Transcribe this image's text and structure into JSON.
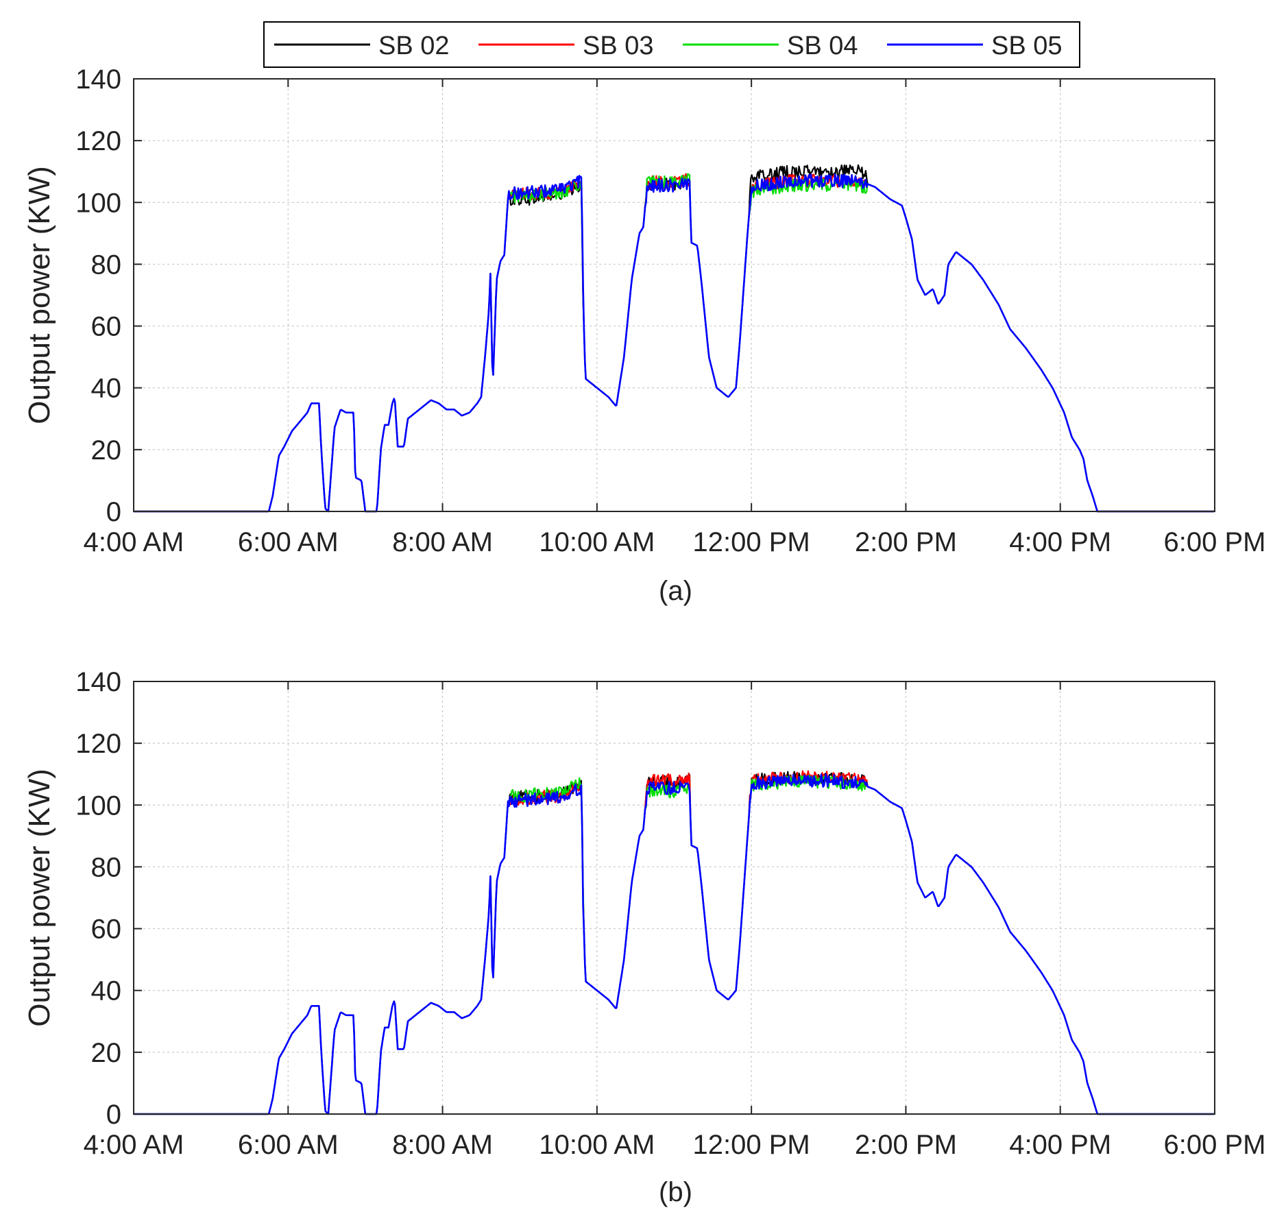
{
  "legend": {
    "entries": [
      {
        "label": "SB 02",
        "color": "#000000"
      },
      {
        "label": "SB 03",
        "color": "#ff0000"
      },
      {
        "label": "SB 04",
        "color": "#00dd00"
      },
      {
        "label": "SB 05",
        "color": "#0000ff"
      }
    ]
  },
  "chart_data": [
    {
      "type": "line",
      "subcaption": "(a)",
      "ylabel": "Output power (KW)",
      "xlabel": "",
      "x_ticks": [
        "4:00 AM",
        "6:00 AM",
        "8:00 AM",
        "10:00 AM",
        "12:00 PM",
        "2:00 PM",
        "4:00 PM",
        "6:00 PM"
      ],
      "x_tick_hours": [
        4,
        6,
        8,
        10,
        12,
        14,
        16,
        18
      ],
      "xlim": [
        "4:00 AM",
        "6:00 PM"
      ],
      "y_ticks": [
        0,
        20,
        40,
        60,
        80,
        100,
        120,
        140
      ],
      "ylim": [
        0,
        140
      ],
      "grid": true,
      "series_note": "x values are hours of day (e.g. 13.5 = 1:30 PM)",
      "base_profile": [
        [
          4.0,
          0
        ],
        [
          5.75,
          0
        ],
        [
          5.8,
          5
        ],
        [
          5.88,
          18
        ],
        [
          5.95,
          21
        ],
        [
          6.05,
          26
        ],
        [
          6.15,
          29
        ],
        [
          6.25,
          32
        ],
        [
          6.3,
          35
        ],
        [
          6.4,
          35
        ],
        [
          6.43,
          20
        ],
        [
          6.48,
          1
        ],
        [
          6.52,
          0
        ],
        [
          6.6,
          27
        ],
        [
          6.68,
          33
        ],
        [
          6.75,
          32
        ],
        [
          6.85,
          32
        ],
        [
          6.87,
          11
        ],
        [
          6.95,
          10
        ],
        [
          7.0,
          0
        ],
        [
          7.15,
          0
        ],
        [
          7.2,
          20
        ],
        [
          7.25,
          28
        ],
        [
          7.3,
          28
        ],
        [
          7.35,
          35
        ],
        [
          7.38,
          37
        ],
        [
          7.42,
          21
        ],
        [
          7.5,
          21
        ],
        [
          7.55,
          30
        ],
        [
          7.7,
          33
        ],
        [
          7.85,
          36
        ],
        [
          7.95,
          35
        ],
        [
          8.05,
          33
        ],
        [
          8.15,
          33
        ],
        [
          8.25,
          31
        ],
        [
          8.35,
          32
        ],
        [
          8.45,
          35
        ],
        [
          8.5,
          37
        ],
        [
          8.55,
          50
        ],
        [
          8.6,
          65
        ],
        [
          8.62,
          77
        ],
        [
          8.65,
          40
        ],
        [
          8.7,
          75
        ],
        [
          8.75,
          81
        ],
        [
          8.8,
          83
        ],
        [
          8.85,
          102
        ],
        [
          9.0,
          102
        ],
        [
          9.5,
          103
        ],
        [
          9.8,
          106
        ],
        [
          9.82,
          70
        ],
        [
          9.85,
          43
        ],
        [
          10.0,
          40
        ],
        [
          10.15,
          37
        ],
        [
          10.25,
          34
        ],
        [
          10.35,
          50
        ],
        [
          10.45,
          75
        ],
        [
          10.55,
          90
        ],
        [
          10.6,
          92
        ],
        [
          10.65,
          106
        ],
        [
          11.0,
          106
        ],
        [
          11.2,
          107
        ],
        [
          11.22,
          87
        ],
        [
          11.3,
          86
        ],
        [
          11.35,
          75
        ],
        [
          11.45,
          50
        ],
        [
          11.55,
          40
        ],
        [
          11.7,
          37
        ],
        [
          11.8,
          40
        ],
        [
          11.85,
          55
        ],
        [
          11.95,
          90
        ],
        [
          12.0,
          105
        ],
        [
          12.5,
          107
        ],
        [
          13.0,
          107
        ],
        [
          13.4,
          107
        ],
        [
          13.5,
          106
        ],
        [
          13.6,
          105
        ],
        [
          13.8,
          101
        ],
        [
          13.95,
          99
        ],
        [
          14.0,
          95
        ],
        [
          14.08,
          88
        ],
        [
          14.15,
          75
        ],
        [
          14.25,
          70
        ],
        [
          14.35,
          72
        ],
        [
          14.42,
          67
        ],
        [
          14.5,
          70
        ],
        [
          14.55,
          80
        ],
        [
          14.65,
          84
        ],
        [
          14.75,
          82
        ],
        [
          14.85,
          80
        ],
        [
          15.0,
          75
        ],
        [
          15.2,
          67
        ],
        [
          15.35,
          59
        ],
        [
          15.55,
          53
        ],
        [
          15.75,
          46
        ],
        [
          15.9,
          40
        ],
        [
          16.05,
          32
        ],
        [
          16.15,
          24
        ],
        [
          16.25,
          20
        ],
        [
          16.3,
          17
        ],
        [
          16.35,
          10
        ],
        [
          16.42,
          5
        ],
        [
          16.48,
          0
        ],
        [
          18.0,
          0
        ]
      ],
      "series": [
        {
          "name": "SB 02",
          "noisy_intervals": [
            [
              8.85,
              9.82
            ],
            [
              10.63,
              11.2
            ],
            [
              11.98,
              13.5
            ]
          ],
          "offset_by_interval": [
            -1.0,
            0.0,
            3.0
          ]
        },
        {
          "name": "SB 03",
          "noisy_intervals": [
            [
              8.85,
              9.82
            ],
            [
              10.63,
              11.2
            ],
            [
              11.98,
              13.5
            ]
          ],
          "offset_by_interval": [
            0.5,
            0.5,
            0.0
          ]
        },
        {
          "name": "SB 04",
          "noisy_intervals": [
            [
              8.85,
              9.82
            ],
            [
              10.63,
              11.2
            ],
            [
              11.98,
              13.5
            ]
          ],
          "offset_by_interval": [
            0.0,
            0.5,
            -1.5
          ]
        },
        {
          "name": "SB 05",
          "noisy_intervals": [
            [
              8.85,
              9.82
            ],
            [
              10.63,
              11.2
            ],
            [
              11.98,
              13.5
            ]
          ],
          "offset_by_interval": [
            1.0,
            -0.5,
            0.0
          ]
        }
      ]
    },
    {
      "type": "line",
      "subcaption": "(b)",
      "ylabel": "Output power (KW)",
      "xlabel": "",
      "x_ticks": [
        "4:00 AM",
        "6:00 AM",
        "8:00 AM",
        "10:00 AM",
        "12:00 PM",
        "2:00 PM",
        "4:00 PM",
        "6:00 PM"
      ],
      "x_tick_hours": [
        4,
        6,
        8,
        10,
        12,
        14,
        16,
        18
      ],
      "xlim": [
        "4:00 AM",
        "6:00 PM"
      ],
      "y_ticks": [
        0,
        20,
        40,
        60,
        80,
        100,
        120,
        140
      ],
      "ylim": [
        0,
        140
      ],
      "grid": true,
      "series_note": "x values are hours of day (e.g. 13.5 = 1:30 PM)",
      "base_profile": [
        [
          4.0,
          0
        ],
        [
          5.75,
          0
        ],
        [
          5.8,
          5
        ],
        [
          5.88,
          18
        ],
        [
          5.95,
          21
        ],
        [
          6.05,
          26
        ],
        [
          6.15,
          29
        ],
        [
          6.25,
          32
        ],
        [
          6.3,
          35
        ],
        [
          6.4,
          35
        ],
        [
          6.43,
          20
        ],
        [
          6.48,
          1
        ],
        [
          6.52,
          0
        ],
        [
          6.6,
          27
        ],
        [
          6.68,
          33
        ],
        [
          6.75,
          32
        ],
        [
          6.85,
          32
        ],
        [
          6.87,
          11
        ],
        [
          6.95,
          10
        ],
        [
          7.0,
          0
        ],
        [
          7.15,
          0
        ],
        [
          7.2,
          20
        ],
        [
          7.25,
          28
        ],
        [
          7.3,
          28
        ],
        [
          7.35,
          35
        ],
        [
          7.38,
          37
        ],
        [
          7.42,
          21
        ],
        [
          7.5,
          21
        ],
        [
          7.55,
          30
        ],
        [
          7.7,
          33
        ],
        [
          7.85,
          36
        ],
        [
          7.95,
          35
        ],
        [
          8.05,
          33
        ],
        [
          8.15,
          33
        ],
        [
          8.25,
          31
        ],
        [
          8.35,
          32
        ],
        [
          8.45,
          35
        ],
        [
          8.5,
          37
        ],
        [
          8.55,
          50
        ],
        [
          8.6,
          65
        ],
        [
          8.62,
          77
        ],
        [
          8.65,
          40
        ],
        [
          8.7,
          75
        ],
        [
          8.75,
          81
        ],
        [
          8.8,
          83
        ],
        [
          8.85,
          102
        ],
        [
          9.0,
          102
        ],
        [
          9.5,
          103
        ],
        [
          9.8,
          106
        ],
        [
          9.82,
          70
        ],
        [
          9.85,
          43
        ],
        [
          10.0,
          40
        ],
        [
          10.15,
          37
        ],
        [
          10.25,
          34
        ],
        [
          10.35,
          50
        ],
        [
          10.45,
          75
        ],
        [
          10.55,
          90
        ],
        [
          10.6,
          92
        ],
        [
          10.65,
          106
        ],
        [
          11.0,
          106
        ],
        [
          11.2,
          107
        ],
        [
          11.22,
          87
        ],
        [
          11.3,
          86
        ],
        [
          11.35,
          75
        ],
        [
          11.45,
          50
        ],
        [
          11.55,
          40
        ],
        [
          11.7,
          37
        ],
        [
          11.8,
          40
        ],
        [
          11.85,
          55
        ],
        [
          11.95,
          90
        ],
        [
          12.0,
          107
        ],
        [
          12.5,
          108
        ],
        [
          13.0,
          108
        ],
        [
          13.4,
          107
        ],
        [
          13.5,
          106
        ],
        [
          13.6,
          105
        ],
        [
          13.8,
          101
        ],
        [
          13.95,
          99
        ],
        [
          14.0,
          95
        ],
        [
          14.08,
          88
        ],
        [
          14.15,
          75
        ],
        [
          14.25,
          70
        ],
        [
          14.35,
          72
        ],
        [
          14.42,
          67
        ],
        [
          14.5,
          70
        ],
        [
          14.55,
          80
        ],
        [
          14.65,
          84
        ],
        [
          14.75,
          82
        ],
        [
          14.85,
          80
        ],
        [
          15.0,
          75
        ],
        [
          15.2,
          67
        ],
        [
          15.35,
          59
        ],
        [
          15.55,
          53
        ],
        [
          15.75,
          46
        ],
        [
          15.9,
          40
        ],
        [
          16.05,
          32
        ],
        [
          16.15,
          24
        ],
        [
          16.25,
          20
        ],
        [
          16.3,
          17
        ],
        [
          16.35,
          10
        ],
        [
          16.42,
          5
        ],
        [
          16.48,
          0
        ],
        [
          18.0,
          0
        ]
      ],
      "series": [
        {
          "name": "SB 02",
          "noisy_intervals": [
            [
              8.85,
              9.82
            ],
            [
              10.63,
              11.2
            ],
            [
              11.98,
              13.5
            ]
          ],
          "offset_by_interval": [
            0.5,
            1.5,
            1.0
          ]
        },
        {
          "name": "SB 03",
          "noisy_intervals": [
            [
              8.85,
              9.82
            ],
            [
              10.63,
              11.2
            ],
            [
              11.98,
              13.5
            ]
          ],
          "offset_by_interval": [
            0.0,
            2.0,
            1.0
          ]
        },
        {
          "name": "SB 04",
          "noisy_intervals": [
            [
              8.85,
              9.82
            ],
            [
              10.63,
              11.2
            ],
            [
              11.98,
              13.5
            ]
          ],
          "offset_by_interval": [
            1.0,
            -1.5,
            -0.5
          ]
        },
        {
          "name": "SB 05",
          "noisy_intervals": [
            [
              8.85,
              9.82
            ],
            [
              10.63,
              11.2
            ],
            [
              11.98,
              13.5
            ]
          ],
          "offset_by_interval": [
            -0.5,
            -0.5,
            0.0
          ]
        }
      ]
    }
  ]
}
